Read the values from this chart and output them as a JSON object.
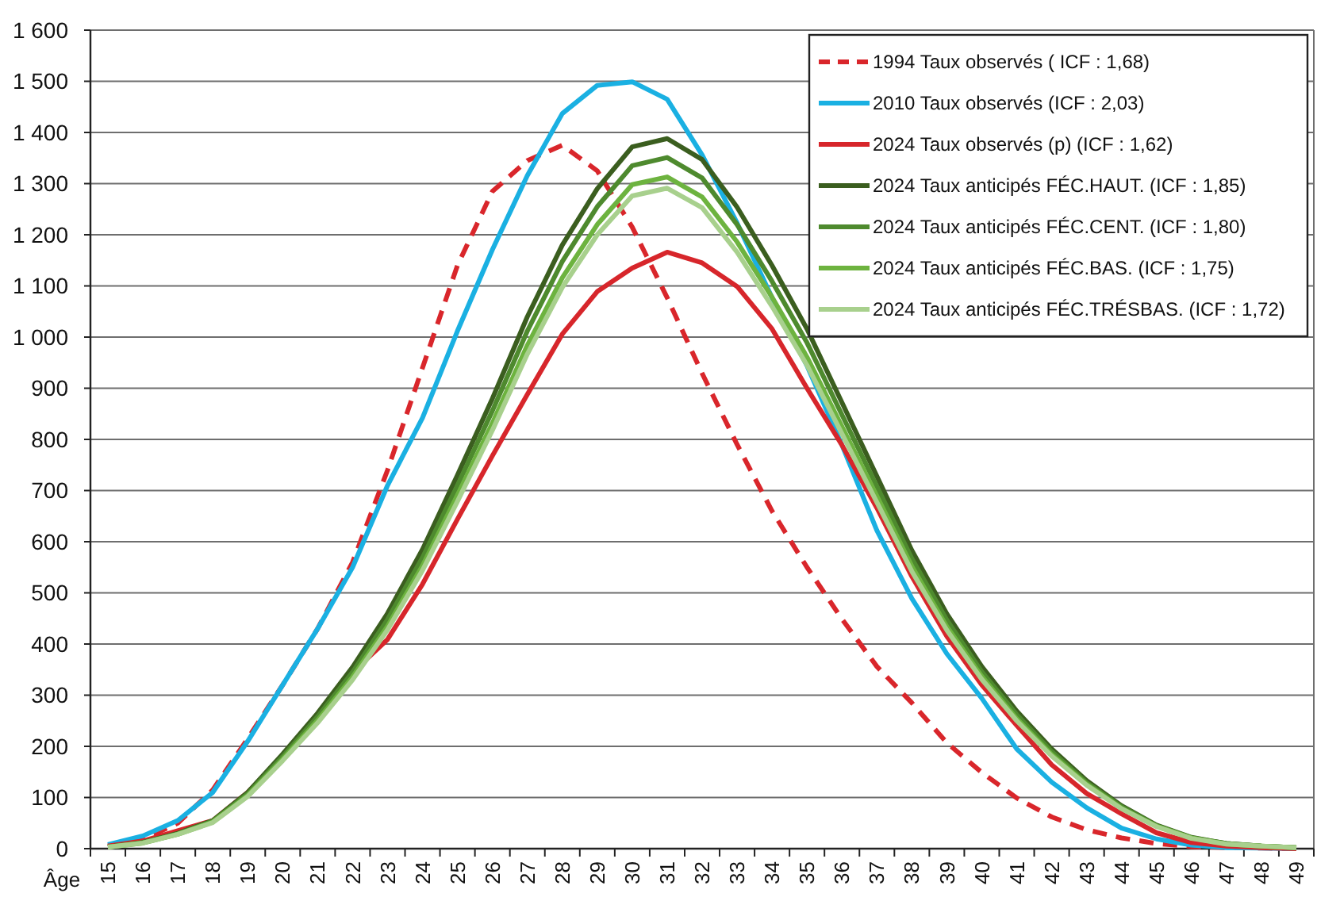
{
  "chart_data": {
    "type": "line",
    "xlabel": "Âge",
    "categories": [
      "15",
      "16",
      "17",
      "18",
      "19",
      "20",
      "21",
      "22",
      "23",
      "24",
      "25",
      "26",
      "27",
      "28",
      "29",
      "30",
      "31",
      "32",
      "33",
      "34",
      "35",
      "36",
      "37",
      "38",
      "39",
      "40",
      "41",
      "42",
      "43",
      "44",
      "45",
      "46",
      "47",
      "48",
      "49"
    ],
    "ylim": [
      0,
      1600
    ],
    "yticks": [
      0,
      100,
      200,
      300,
      400,
      500,
      600,
      700,
      800,
      900,
      {
        "value": 1000,
        "label": "1 000"
      },
      {
        "value": 1100,
        "label": "1 100"
      },
      {
        "value": 1200,
        "label": "1 200"
      },
      {
        "value": 1300,
        "label": "1 300"
      },
      {
        "value": 1400,
        "label": "1 400"
      },
      {
        "value": 1500,
        "label": "1 500"
      },
      {
        "value": 1600,
        "label": "1 600"
      }
    ],
    "grid": "y",
    "legend": "top right",
    "series": [
      {
        "name": "1994 Taux observés ( ICF : 1,68)",
        "color": "#d9262b",
        "line_style": "dashed",
        "values": [
          5,
          18,
          50,
          115,
          215,
          320,
          430,
          560,
          740,
          940,
          1140,
          1285,
          1345,
          1375,
          1325,
          1215,
          1077,
          929,
          790,
          660,
          550,
          449,
          356,
          285,
          207,
          149,
          99,
          62,
          37,
          21,
          10,
          4,
          2,
          1,
          0
        ]
      },
      {
        "name": "2010 Taux observés (ICF : 2,03)",
        "color": "#1ab0e2",
        "values": [
          8,
          25,
          55,
          110,
          210,
          320,
          430,
          550,
          710,
          842,
          1012,
          1171,
          1316,
          1437,
          1492,
          1499,
          1465,
          1356,
          1223,
          1077,
          944,
          789,
          622,
          489,
          381,
          294,
          195,
          130,
          80,
          40,
          19,
          7,
          2,
          1,
          0
        ]
      },
      {
        "name": "2024 Taux observés (p) (ICF : 1,62)",
        "color": "#d7262b",
        "values": [
          5,
          15,
          35,
          55,
          110,
          180,
          260,
          345,
          409,
          517,
          644,
          768,
          888,
          1006,
          1089,
          1135,
          1166,
          1145,
          1099,
          1016,
          900,
          789,
          666,
          532,
          415,
          320,
          241,
          164,
          108,
          68,
          31,
          12,
          5,
          2,
          0
        ]
      },
      {
        "name": "2024 Taux anticipés FÉC.HAUT. (ICF : 1,85)",
        "color": "#3b5e1f",
        "values": [
          3,
          12,
          30,
          55,
          110,
          185,
          265,
          355,
          460,
          585,
          730,
          880,
          1040,
          1180,
          1290,
          1372,
          1388,
          1347,
          1254,
          1140,
          1016,
          872,
          728,
          583,
          459,
          356,
          269,
          195,
          133,
          84,
          46,
          22,
          10,
          5,
          2
        ]
      },
      {
        "name": "2024 Taux anticipés FÉC.CENT. (ICF : 1,80)",
        "color": "#4e8a2e",
        "values": [
          3,
          12,
          29,
          54,
          107,
          180,
          258,
          345,
          448,
          569,
          710,
          856,
          1012,
          1148,
          1255,
          1335,
          1351,
          1311,
          1220,
          1109,
          989,
          848,
          708,
          567,
          447,
          346,
          262,
          190,
          129,
          82,
          45,
          21,
          10,
          5,
          2
        ]
      },
      {
        "name": "2024 Taux anticipés FÉC.BAS. (ICF : 1,75)",
        "color": "#6db33f",
        "values": [
          3,
          11,
          28,
          52,
          104,
          175,
          251,
          336,
          435,
          553,
          691,
          832,
          984,
          1116,
          1220,
          1298,
          1313,
          1274,
          1186,
          1078,
          961,
          825,
          689,
          552,
          434,
          337,
          254,
          184,
          126,
          79,
          44,
          21,
          9,
          5,
          2
        ]
      },
      {
        "name": "2024 Taux anticipés FÉC.TRÉSBAS. (ICF : 1,72)",
        "color": "#a8d08d",
        "values": [
          3,
          11,
          28,
          51,
          102,
          172,
          246,
          330,
          428,
          544,
          679,
          818,
          967,
          1097,
          1200,
          1276,
          1291,
          1253,
          1166,
          1060,
          945,
          811,
          677,
          542,
          427,
          331,
          250,
          181,
          124,
          78,
          43,
          20,
          9,
          5,
          2
        ]
      }
    ]
  }
}
